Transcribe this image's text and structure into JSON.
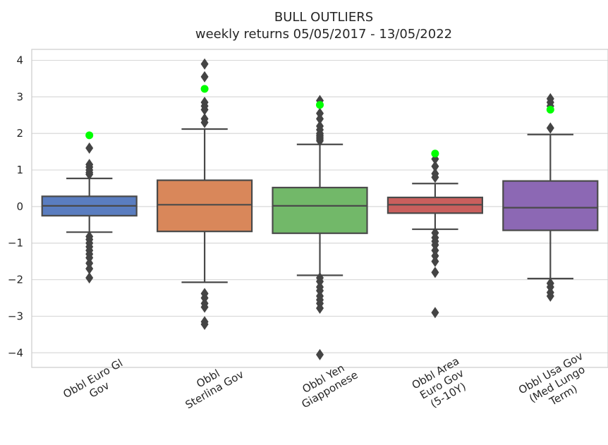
{
  "chart_data": {
    "type": "box",
    "title": "BULL OUTLIERS",
    "subtitle": "weekly returns 05/05/2017 - 13/05/2022",
    "xlabel": "",
    "ylabel": "",
    "ylim": [
      -4.4,
      4.3
    ],
    "yticks": [
      4,
      3,
      2,
      1,
      0,
      -1,
      -2,
      -3,
      -4
    ],
    "ytick_labels": [
      "4",
      "3",
      "2",
      "1",
      "0",
      "−1",
      "−2",
      "−3",
      "−4"
    ],
    "grid": true,
    "categories": [
      "Obbl Euro Gl Gov",
      "Obbl Sterlina Gov",
      "Obbl Yen Giapponese",
      "Obbl Area Euro Gov (5-10Y)",
      "Obbl Usa Gov (Med Lungo Term)"
    ],
    "category_label_lines": [
      [
        "Obbl Euro Gl",
        "Gov"
      ],
      [
        "Obbl",
        "Sterlina Gov"
      ],
      [
        "Obbl Yen",
        "Giapponese"
      ],
      [
        "Obbl Area",
        "Euro Gov",
        "(5-10Y)"
      ],
      [
        "Obbl Usa Gov",
        "(Med Lungo",
        "Term)"
      ]
    ],
    "boxes": [
      {
        "color": "#5a7dc0",
        "q1": -0.25,
        "median": 0.02,
        "q3": 0.28,
        "whisker_low": -0.7,
        "whisker_high": 0.77,
        "outliers": [
          1.6,
          1.15,
          1.08,
          1.0,
          0.93,
          0.88,
          -0.82,
          -0.9,
          -1.0,
          -1.1,
          -1.2,
          -1.3,
          -1.4,
          -1.55,
          -1.7,
          -1.95
        ],
        "highlight": [
          1.95
        ]
      },
      {
        "color": "#d9875a",
        "q1": -0.68,
        "median": 0.05,
        "q3": 0.72,
        "whisker_low": -2.07,
        "whisker_high": 2.12,
        "outliers": [
          3.9,
          3.55,
          2.85,
          2.75,
          2.65,
          2.4,
          2.3,
          -2.38,
          -2.5,
          -2.65,
          -2.75,
          -3.15,
          -3.22
        ],
        "highlight": [
          3.22
        ]
      },
      {
        "color": "#72b869",
        "q1": -0.73,
        "median": 0.02,
        "q3": 0.52,
        "whisker_low": -1.88,
        "whisker_high": 1.7,
        "outliers": [
          2.9,
          2.55,
          2.4,
          2.2,
          2.1,
          2.0,
          1.95,
          1.9,
          1.85,
          1.8,
          -1.95,
          -2.05,
          -2.2,
          -2.3,
          -2.45,
          -2.55,
          -2.65,
          -2.78,
          -4.05
        ],
        "highlight": [
          2.78
        ]
      },
      {
        "color": "#c95f5d",
        "q1": -0.18,
        "median": 0.05,
        "q3": 0.25,
        "whisker_low": -0.62,
        "whisker_high": 0.63,
        "outliers": [
          1.3,
          1.1,
          0.9,
          0.8,
          -0.72,
          -0.85,
          -0.95,
          -1.05,
          -1.2,
          -1.35,
          -1.5,
          -1.8,
          -2.9
        ],
        "highlight": [
          1.45
        ]
      },
      {
        "color": "#8c68b4",
        "q1": -0.65,
        "median": -0.03,
        "q3": 0.7,
        "whisker_low": -1.97,
        "whisker_high": 1.97,
        "outliers": [
          2.95,
          2.85,
          2.75,
          2.15,
          -2.1,
          -2.2,
          -2.35,
          -2.45
        ],
        "highlight": [
          2.65
        ]
      }
    ],
    "outlier_color": "#444444",
    "highlight_color": "#00ff00",
    "line_color": "#4a4a4a"
  }
}
